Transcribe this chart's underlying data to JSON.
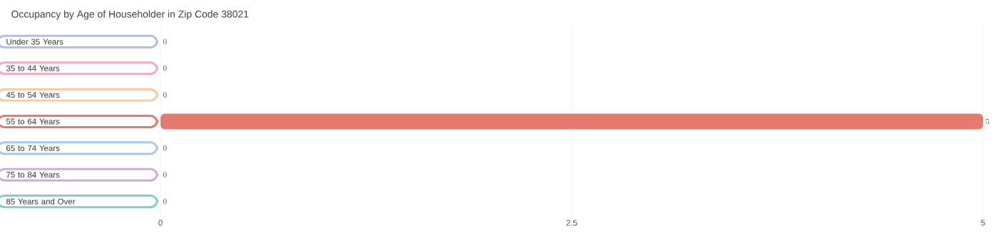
{
  "chart_data": {
    "type": "bar",
    "orientation": "horizontal",
    "title": "Occupancy by Age of Householder in Zip Code 38021",
    "categories": [
      "Under 35 Years",
      "35 to 44 Years",
      "45 to 54 Years",
      "55 to 64 Years",
      "65 to 74 Years",
      "75 to 84 Years",
      "85 Years and Over"
    ],
    "values": [
      0,
      0,
      0,
      5,
      0,
      0,
      0
    ],
    "colors": [
      "#b3bdea",
      "#f7a8c3",
      "#f9c9a0",
      "#e57a70",
      "#a9c8ef",
      "#c9b0d6",
      "#7fcfcf"
    ],
    "xlim": [
      0,
      5
    ],
    "xticks": [
      0,
      2.5,
      5
    ],
    "grid": "x",
    "data_labels": true
  }
}
